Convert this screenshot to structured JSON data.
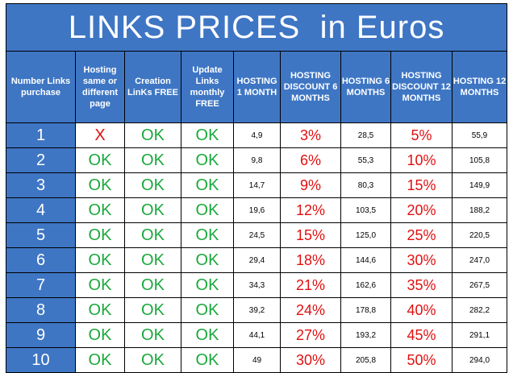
{
  "title": "LINKS PRICES  in Euros",
  "headers": [
    "Number Links purchase",
    "Hosting same or different page",
    "Creation LinKs FREE",
    "Update Links monthly FREE",
    "HOSTING 1 MONTH",
    "HOSTING DISCOUNT 6 MONTHS",
    "HOSTING 6 MONTHS",
    "HOSTING DISCOUNT 12 MONTHS",
    "HOSTING 12 MONTHS"
  ],
  "rows": [
    [
      "1",
      "X",
      "OK",
      "OK",
      "4,9",
      "3%",
      "28,5",
      "5%",
      "55,9"
    ],
    [
      "2",
      "OK",
      "OK",
      "OK",
      "9,8",
      "6%",
      "55,3",
      "10%",
      "105,8"
    ],
    [
      "3",
      "OK",
      "OK",
      "OK",
      "14,7",
      "9%",
      "80,3",
      "15%",
      "149,9"
    ],
    [
      "4",
      "OK",
      "OK",
      "OK",
      "19,6",
      "12%",
      "103,5",
      "20%",
      "188,2"
    ],
    [
      "5",
      "OK",
      "OK",
      "OK",
      "24,5",
      "15%",
      "125,0",
      "25%",
      "220,5"
    ],
    [
      "6",
      "OK",
      "OK",
      "OK",
      "29,4",
      "18%",
      "144,6",
      "30%",
      "247,0"
    ],
    [
      "7",
      "OK",
      "OK",
      "OK",
      "34,3",
      "21%",
      "162,6",
      "35%",
      "267,5"
    ],
    [
      "8",
      "OK",
      "OK",
      "OK",
      "39,2",
      "24%",
      "178,8",
      "40%",
      "282,2"
    ],
    [
      "9",
      "OK",
      "OK",
      "OK",
      "44,1",
      "27%",
      "193,2",
      "45%",
      "291,1"
    ],
    [
      "10",
      "OK",
      "OK",
      "OK",
      "49",
      "30%",
      "205,8",
      "50%",
      "294,0"
    ]
  ],
  "colors": {
    "header_bg": "#3e76c4",
    "ok": "#1aa83c",
    "discount": "#e01010"
  }
}
